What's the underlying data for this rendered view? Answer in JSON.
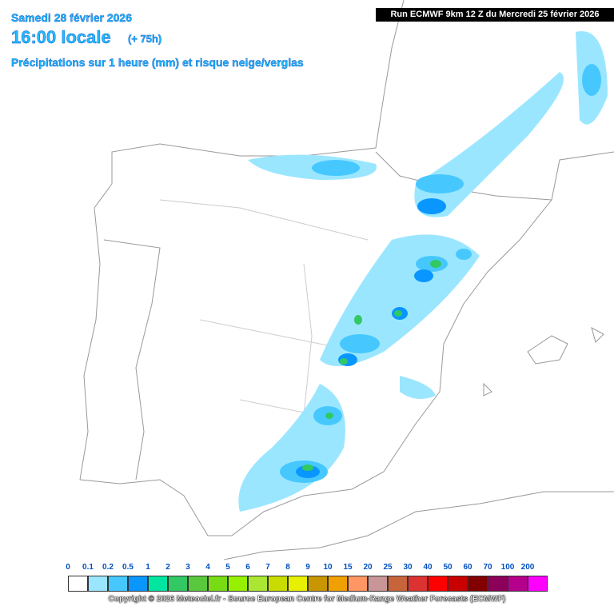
{
  "header": {
    "date": "Samedi 28 février 2026",
    "time": "16:00 locale",
    "lead": "(+ 75h)",
    "subtitle": "Précipitations sur 1 heure (mm) et risque neige/verglas",
    "run": "Run ECMWF 9km 12 Z du Mercredi 25 février 2026"
  },
  "legend": {
    "items": [
      {
        "label": "0",
        "color": "#ffffff"
      },
      {
        "label": "0.1",
        "color": "#9be6ff"
      },
      {
        "label": "0.2",
        "color": "#46c8ff"
      },
      {
        "label": "0.5",
        "color": "#0a96ff"
      },
      {
        "label": "1",
        "color": "#00e6a0"
      },
      {
        "label": "2",
        "color": "#32c864"
      },
      {
        "label": "3",
        "color": "#5ac83c"
      },
      {
        "label": "4",
        "color": "#78dc14"
      },
      {
        "label": "5",
        "color": "#96f000"
      },
      {
        "label": "6",
        "color": "#aae632"
      },
      {
        "label": "7",
        "color": "#c8dc00"
      },
      {
        "label": "8",
        "color": "#e6f000"
      },
      {
        "label": "9",
        "color": "#c89600"
      },
      {
        "label": "10",
        "color": "#f0a000"
      },
      {
        "label": "15",
        "color": "#ff9664"
      },
      {
        "label": "20",
        "color": "#c89696"
      },
      {
        "label": "25",
        "color": "#c8643c"
      },
      {
        "label": "30",
        "color": "#dc3232"
      },
      {
        "label": "40",
        "color": "#ff0000"
      },
      {
        "label": "50",
        "color": "#c80000"
      },
      {
        "label": "60",
        "color": "#820000"
      },
      {
        "label": "70",
        "color": "#8c005a"
      },
      {
        "label": "100",
        "color": "#b4008c"
      },
      {
        "label": "200",
        "color": "#ff00ff"
      }
    ]
  },
  "footer": {
    "copyright": "Copyright © 2026 Meteociel.fr - Source European Centre for Medium-Range Weather Forecasts (ECMWF)"
  }
}
